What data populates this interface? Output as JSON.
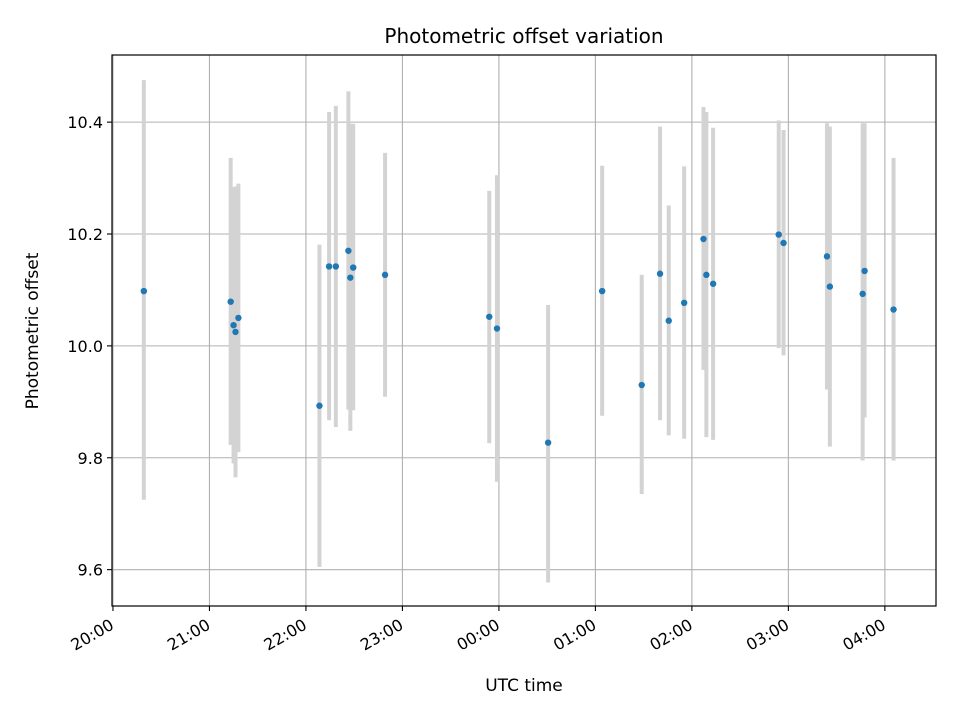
{
  "chart_data": {
    "type": "scatter",
    "title": "Photometric offset variation",
    "xlabel": "UTC time",
    "ylabel": "Photometric offset",
    "x_unit": "hours since 20:00 UTC",
    "xlim": [
      -0.01,
      8.53
    ],
    "ylim": [
      9.535,
      10.52
    ],
    "xticks": [
      0,
      1,
      2,
      3,
      4,
      5,
      6,
      7,
      8
    ],
    "xtick_labels": [
      "20:00",
      "21:00",
      "22:00",
      "23:00",
      "00:00",
      "01:00",
      "02:00",
      "03:00",
      "04:00"
    ],
    "yticks": [
      9.6,
      9.8,
      10.0,
      10.2,
      10.4
    ],
    "ytick_labels": [
      "9.6",
      "9.8",
      "10.0",
      "10.2",
      "10.4"
    ],
    "grid": true,
    "marker_color": "#1f77b4",
    "errorbar_color": "#d3d3d3",
    "points": [
      {
        "t": "20:19",
        "x": 0.32,
        "y": 10.098,
        "low": 9.725,
        "high": 10.475
      },
      {
        "t": "21:13",
        "x": 1.22,
        "y": 10.079,
        "low": 9.823,
        "high": 10.336
      },
      {
        "t": "21:15",
        "x": 1.25,
        "y": 10.037,
        "low": 9.79,
        "high": 10.284
      },
      {
        "t": "21:16",
        "x": 1.27,
        "y": 10.025,
        "low": 9.765,
        "high": 10.285
      },
      {
        "t": "21:18",
        "x": 1.3,
        "y": 10.05,
        "low": 9.81,
        "high": 10.29
      },
      {
        "t": "22:08",
        "x": 2.14,
        "y": 9.893,
        "low": 9.605,
        "high": 10.181
      },
      {
        "t": "22:14",
        "x": 2.24,
        "y": 10.142,
        "low": 9.867,
        "high": 10.418
      },
      {
        "t": "22:18",
        "x": 2.31,
        "y": 10.142,
        "low": 9.855,
        "high": 10.429
      },
      {
        "t": "22:26",
        "x": 2.44,
        "y": 10.17,
        "low": 9.886,
        "high": 10.455
      },
      {
        "t": "22:27",
        "x": 2.46,
        "y": 10.122,
        "low": 9.848,
        "high": 10.397
      },
      {
        "t": "22:29",
        "x": 2.49,
        "y": 10.14,
        "low": 9.885,
        "high": 10.397
      },
      {
        "t": "22:49",
        "x": 2.82,
        "y": 10.127,
        "low": 9.909,
        "high": 10.345
      },
      {
        "t": "23:54",
        "x": 3.9,
        "y": 10.052,
        "low": 9.826,
        "high": 10.277
      },
      {
        "t": "23:59",
        "x": 3.98,
        "y": 10.031,
        "low": 9.757,
        "high": 10.305
      },
      {
        "t": "00:31",
        "x": 4.51,
        "y": 9.827,
        "low": 9.577,
        "high": 10.073
      },
      {
        "t": "01:04",
        "x": 5.07,
        "y": 10.098,
        "low": 9.875,
        "high": 10.322
      },
      {
        "t": "01:29",
        "x": 5.48,
        "y": 9.93,
        "low": 9.735,
        "high": 10.127
      },
      {
        "t": "01:40",
        "x": 5.67,
        "y": 10.129,
        "low": 9.867,
        "high": 10.392
      },
      {
        "t": "01:45",
        "x": 5.76,
        "y": 10.045,
        "low": 9.84,
        "high": 10.251
      },
      {
        "t": "01:55",
        "x": 5.92,
        "y": 10.077,
        "low": 9.834,
        "high": 10.321
      },
      {
        "t": "02:07",
        "x": 6.12,
        "y": 10.191,
        "low": 9.957,
        "high": 10.427
      },
      {
        "t": "02:09",
        "x": 6.15,
        "y": 10.127,
        "low": 9.837,
        "high": 10.418
      },
      {
        "t": "02:13",
        "x": 6.22,
        "y": 10.111,
        "low": 9.832,
        "high": 10.39
      },
      {
        "t": "02:54",
        "x": 6.9,
        "y": 10.199,
        "low": 9.996,
        "high": 10.403
      },
      {
        "t": "02:57",
        "x": 6.95,
        "y": 10.184,
        "low": 9.983,
        "high": 10.386
      },
      {
        "t": "03:24",
        "x": 7.4,
        "y": 10.16,
        "low": 9.922,
        "high": 10.398
      },
      {
        "t": "03:26",
        "x": 7.43,
        "y": 10.106,
        "low": 9.82,
        "high": 10.392
      },
      {
        "t": "03:46",
        "x": 7.77,
        "y": 10.093,
        "low": 9.795,
        "high": 10.398
      },
      {
        "t": "03:47",
        "x": 7.79,
        "y": 10.134,
        "low": 9.872,
        "high": 10.398
      },
      {
        "t": "04:05",
        "x": 8.09,
        "y": 10.065,
        "low": 9.795,
        "high": 10.336
      }
    ]
  }
}
